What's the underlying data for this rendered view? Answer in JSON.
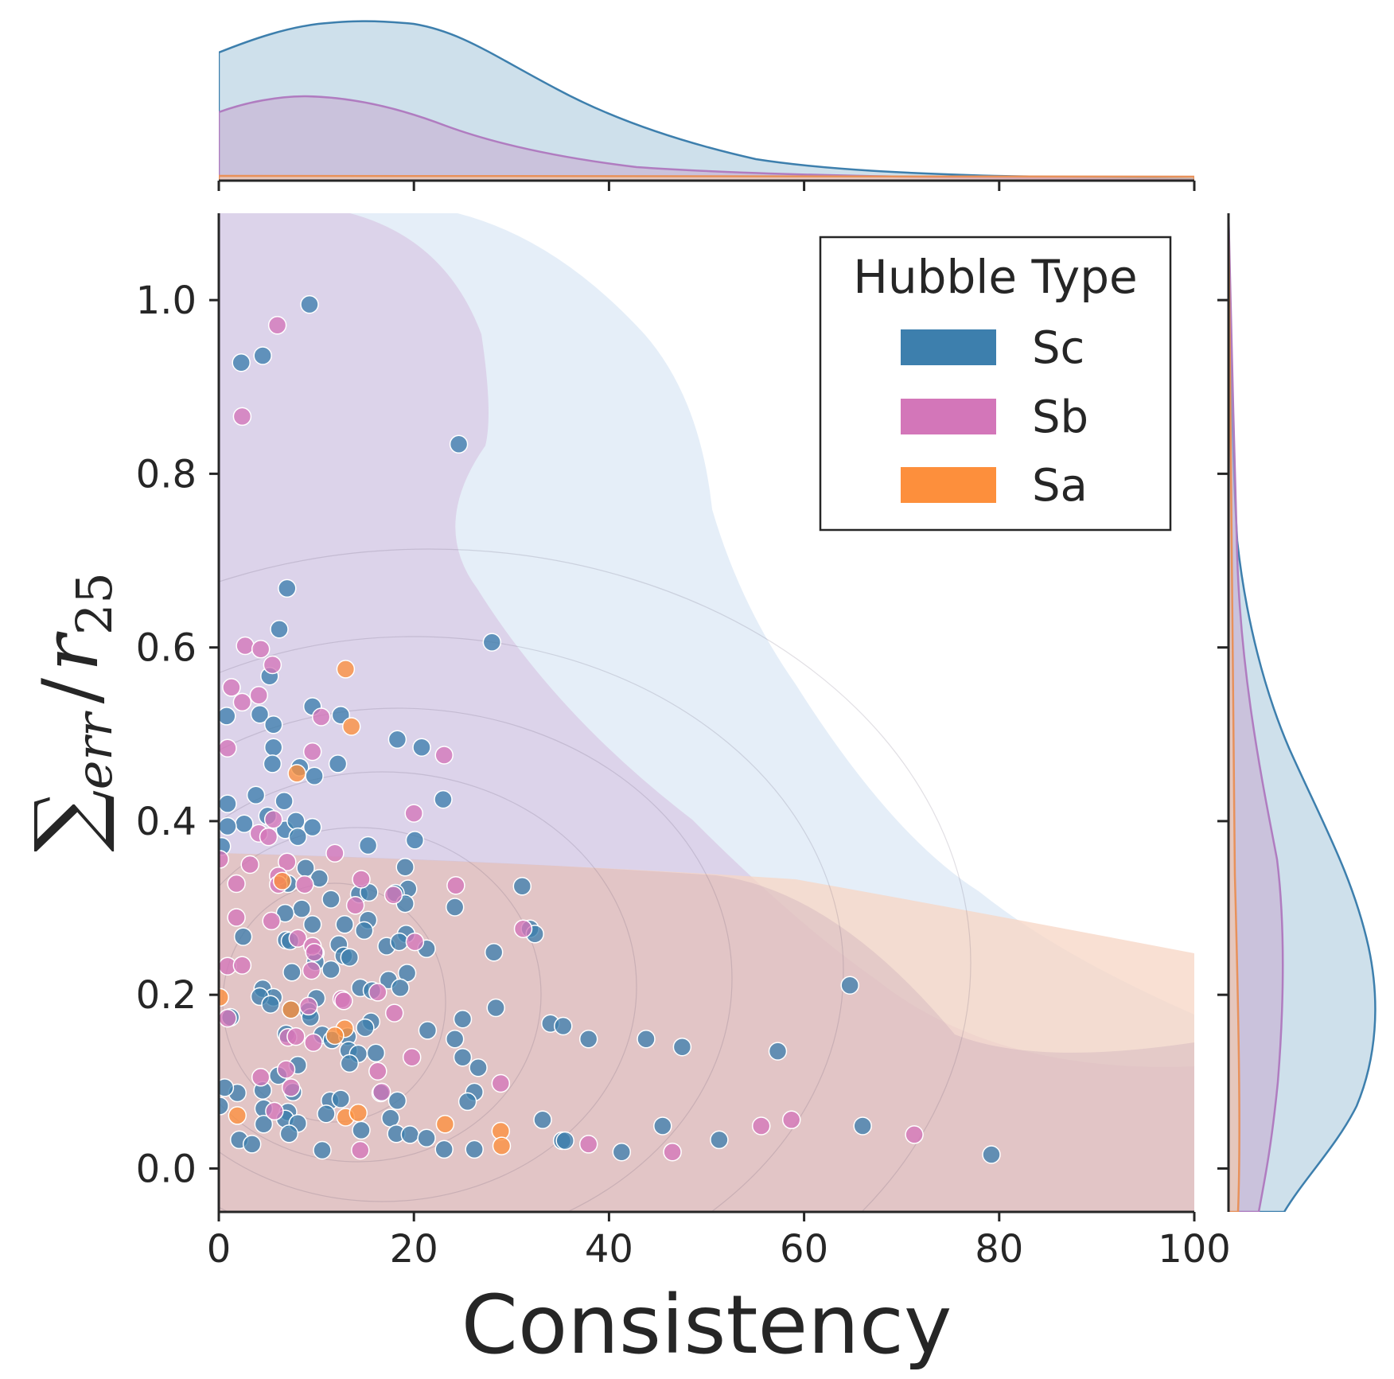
{
  "chart_data": {
    "type": "scatter",
    "xlabel": "Consistency",
    "ylabel": "Σ_err / r_25",
    "ylabel_parts": {
      "sum": "∑",
      "sub": "err",
      "slash": "/",
      "r": "r",
      "r_sub": "25"
    },
    "xlim": [
      0,
      100
    ],
    "ylim": [
      -0.05,
      1.1
    ],
    "x_ticks": [
      0,
      20,
      40,
      60,
      80,
      100
    ],
    "x_tick_labels": [
      "0",
      "20",
      "40",
      "60",
      "80",
      "100"
    ],
    "y_ticks": [
      0.0,
      0.2,
      0.4,
      0.6,
      0.8,
      1.0
    ],
    "y_tick_labels": [
      "0.0",
      "0.2",
      "0.4",
      "0.6",
      "0.8",
      "1.0"
    ],
    "legend": {
      "title": "Hubble Type",
      "position": "top-right",
      "entries": [
        "Sc",
        "Sb",
        "Sa"
      ]
    },
    "colors": {
      "Sc": "#3d7fad",
      "Sb": "#d376b9",
      "Sa": "#fd8f3c"
    },
    "series": [
      {
        "name": "Sc",
        "color": "#3d7fad",
        "points": [
          [
            9.3,
            0.995
          ],
          [
            2.3,
            0.928
          ],
          [
            4.5,
            0.936
          ],
          [
            24.6,
            0.834
          ],
          [
            7,
            0.668
          ],
          [
            6.2,
            0.621
          ],
          [
            28,
            0.606
          ],
          [
            5.2,
            0.567
          ],
          [
            9.6,
            0.532
          ],
          [
            12.5,
            0.522
          ],
          [
            4.2,
            0.523
          ],
          [
            0.8,
            0.521
          ],
          [
            5.6,
            0.511
          ],
          [
            18.3,
            0.494
          ],
          [
            20.8,
            0.485
          ],
          [
            5.6,
            0.485
          ],
          [
            5.5,
            0.466
          ],
          [
            12.2,
            0.466
          ],
          [
            8.3,
            0.462
          ],
          [
            9.8,
            0.452
          ],
          [
            23,
            0.425
          ],
          [
            3.8,
            0.43
          ],
          [
            6.7,
            0.423
          ],
          [
            0.9,
            0.42
          ],
          [
            5,
            0.406
          ],
          [
            2.6,
            0.397
          ],
          [
            6.8,
            0.39
          ],
          [
            7.9,
            0.4
          ],
          [
            0.9,
            0.394
          ],
          [
            9.6,
            0.393
          ],
          [
            8.1,
            0.382
          ],
          [
            20.1,
            0.378
          ],
          [
            15.3,
            0.372
          ],
          [
            0.3,
            0.371
          ],
          [
            8.9,
            0.346
          ],
          [
            19.1,
            0.347
          ],
          [
            10.3,
            0.334
          ],
          [
            7.1,
            0.328
          ],
          [
            31.1,
            0.325
          ],
          [
            19.4,
            0.322
          ],
          [
            18.1,
            0.317
          ],
          [
            14.4,
            0.316
          ],
          [
            15.4,
            0.318
          ],
          [
            11.5,
            0.31
          ],
          [
            24.2,
            0.301
          ],
          [
            19.1,
            0.305
          ],
          [
            8.5,
            0.299
          ],
          [
            6.8,
            0.294
          ],
          [
            15.3,
            0.286
          ],
          [
            9.6,
            0.281
          ],
          [
            12.9,
            0.281
          ],
          [
            14.9,
            0.274
          ],
          [
            31.9,
            0.276
          ],
          [
            32.4,
            0.27
          ],
          [
            19.2,
            0.27
          ],
          [
            2.5,
            0.267
          ],
          [
            6.9,
            0.263
          ],
          [
            7.3,
            0.262
          ],
          [
            17.2,
            0.256
          ],
          [
            18.5,
            0.261
          ],
          [
            12.3,
            0.258
          ],
          [
            21.3,
            0.253
          ],
          [
            9.9,
            0.248
          ],
          [
            28.2,
            0.249
          ],
          [
            12.8,
            0.245
          ],
          [
            13.4,
            0.243
          ],
          [
            9.9,
            0.238
          ],
          [
            11.5,
            0.229
          ],
          [
            19.3,
            0.225
          ],
          [
            7.5,
            0.226
          ],
          [
            17.4,
            0.217
          ],
          [
            18.6,
            0.208
          ],
          [
            64.7,
            0.211
          ],
          [
            14.5,
            0.208
          ],
          [
            4.5,
            0.207
          ],
          [
            15.7,
            0.205
          ],
          [
            5.6,
            0.197
          ],
          [
            10,
            0.196
          ],
          [
            4.2,
            0.198
          ],
          [
            5.3,
            0.189
          ],
          [
            28.4,
            0.185
          ],
          [
            9.2,
            0.181
          ],
          [
            7.4,
            0.183
          ],
          [
            9.4,
            0.174
          ],
          [
            1.2,
            0.174
          ],
          [
            25,
            0.172
          ],
          [
            15.6,
            0.169
          ],
          [
            34,
            0.167
          ],
          [
            35.3,
            0.164
          ],
          [
            15,
            0.162
          ],
          [
            21.4,
            0.159
          ],
          [
            6.9,
            0.155
          ],
          [
            10.6,
            0.154
          ],
          [
            11.6,
            0.148
          ],
          [
            37.9,
            0.149
          ],
          [
            43.8,
            0.149
          ],
          [
            24.2,
            0.149
          ],
          [
            13.2,
            0.152
          ],
          [
            47.5,
            0.14
          ],
          [
            57.3,
            0.135
          ],
          [
            13.3,
            0.136
          ],
          [
            16.1,
            0.133
          ],
          [
            14.3,
            0.132
          ],
          [
            25,
            0.128
          ],
          [
            8.1,
            0.119
          ],
          [
            13.4,
            0.121
          ],
          [
            26.6,
            0.116
          ],
          [
            6.1,
            0.107
          ],
          [
            4.5,
            0.09
          ],
          [
            1.9,
            0.087
          ],
          [
            7.6,
            0.088
          ],
          [
            26.2,
            0.088
          ],
          [
            0.6,
            0.093
          ],
          [
            16.6,
            0.087
          ],
          [
            11.4,
            0.078
          ],
          [
            12.5,
            0.08
          ],
          [
            18.3,
            0.078
          ],
          [
            25.5,
            0.077
          ],
          [
            0.1,
            0.072
          ],
          [
            4.6,
            0.069
          ],
          [
            7.1,
            0.065
          ],
          [
            11,
            0.063
          ],
          [
            33.2,
            0.056
          ],
          [
            17.6,
            0.058
          ],
          [
            6.8,
            0.057
          ],
          [
            4.6,
            0.051
          ],
          [
            8.1,
            0.052
          ],
          [
            45.5,
            0.049
          ],
          [
            66,
            0.049
          ],
          [
            14.6,
            0.044
          ],
          [
            7.2,
            0.04
          ],
          [
            18.2,
            0.04
          ],
          [
            19.6,
            0.039
          ],
          [
            21.3,
            0.035
          ],
          [
            2.1,
            0.033
          ],
          [
            35.2,
            0.032
          ],
          [
            35.5,
            0.032
          ],
          [
            51.3,
            0.033
          ],
          [
            3.4,
            0.028
          ],
          [
            10.6,
            0.021
          ],
          [
            23.1,
            0.022
          ],
          [
            26.2,
            0.022
          ],
          [
            41.3,
            0.019
          ],
          [
            79.2,
            0.016
          ]
        ]
      },
      {
        "name": "Sb",
        "color": "#d376b9",
        "points": [
          [
            6,
            0.971
          ],
          [
            2.4,
            0.866
          ],
          [
            2.7,
            0.602
          ],
          [
            4.3,
            0.598
          ],
          [
            5.5,
            0.58
          ],
          [
            1.3,
            0.554
          ],
          [
            4.1,
            0.545
          ],
          [
            2.4,
            0.537
          ],
          [
            10.5,
            0.52
          ],
          [
            0.9,
            0.484
          ],
          [
            9.6,
            0.48
          ],
          [
            23.1,
            0.476
          ],
          [
            20,
            0.409
          ],
          [
            4.1,
            0.386
          ],
          [
            5.1,
            0.382
          ],
          [
            5.6,
            0.402
          ],
          [
            11.9,
            0.363
          ],
          [
            0.1,
            0.356
          ],
          [
            3.2,
            0.35
          ],
          [
            7,
            0.353
          ],
          [
            14.6,
            0.333
          ],
          [
            6.1,
            0.337
          ],
          [
            8.8,
            0.327
          ],
          [
            24.3,
            0.326
          ],
          [
            1.8,
            0.328
          ],
          [
            17.9,
            0.315
          ],
          [
            14,
            0.303
          ],
          [
            6.1,
            0.327
          ],
          [
            31.2,
            0.276
          ],
          [
            5.4,
            0.285
          ],
          [
            1.8,
            0.289
          ],
          [
            20.1,
            0.261
          ],
          [
            8.1,
            0.265
          ],
          [
            9.6,
            0.256
          ],
          [
            9.8,
            0.249
          ],
          [
            0.9,
            0.233
          ],
          [
            2.4,
            0.234
          ],
          [
            9.5,
            0.228
          ],
          [
            12.6,
            0.195
          ],
          [
            16.3,
            0.203
          ],
          [
            12.8,
            0.193
          ],
          [
            0.9,
            0.173
          ],
          [
            18,
            0.179
          ],
          [
            9.2,
            0.187
          ],
          [
            7.1,
            0.151
          ],
          [
            9.7,
            0.145
          ],
          [
            7.9,
            0.152
          ],
          [
            19.8,
            0.128
          ],
          [
            16.3,
            0.112
          ],
          [
            6.9,
            0.114
          ],
          [
            4.3,
            0.105
          ],
          [
            28.9,
            0.098
          ],
          [
            7.4,
            0.093
          ],
          [
            16.7,
            0.088
          ],
          [
            5.7,
            0.066
          ],
          [
            58.7,
            0.056
          ],
          [
            55.6,
            0.049
          ],
          [
            71.3,
            0.039
          ],
          [
            37.9,
            0.028
          ],
          [
            14.5,
            0.021
          ],
          [
            46.5,
            0.019
          ]
        ]
      },
      {
        "name": "Sa",
        "color": "#fd8f3c",
        "points": [
          [
            13,
            0.575
          ],
          [
            13.6,
            0.509
          ],
          [
            8,
            0.455
          ],
          [
            0.1,
            0.197
          ],
          [
            7.4,
            0.183
          ],
          [
            12.9,
            0.161
          ],
          [
            11.9,
            0.153
          ],
          [
            1.9,
            0.061
          ],
          [
            13,
            0.059
          ],
          [
            14.3,
            0.064
          ],
          [
            23.2,
            0.051
          ],
          [
            28.9,
            0.043
          ],
          [
            29,
            0.026
          ],
          [
            6.5,
            0.331
          ]
        ]
      }
    ]
  }
}
